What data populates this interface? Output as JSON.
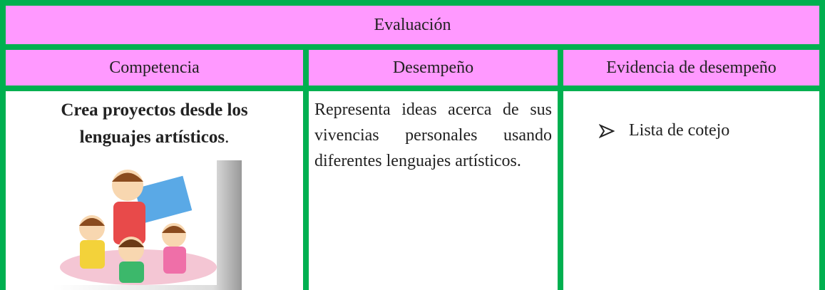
{
  "table": {
    "title": "Evaluación",
    "headers": [
      "Competencia",
      "Desempeño",
      "Evidencia de desempeño"
    ],
    "rows": [
      {
        "competencia": {
          "bold": "Crea proyectos desde los lenguajes artísticos",
          "tail": "."
        },
        "desempeno": "Representa ideas acerca de sus vivencias personales usando diferentes lenguajes artísticos.",
        "evidencia": "Lista de cotejo"
      }
    ]
  }
}
